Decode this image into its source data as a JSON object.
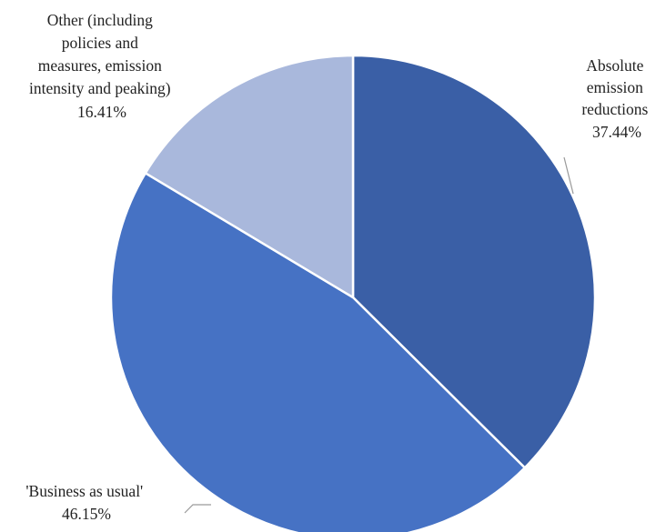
{
  "chart_data": {
    "type": "pie",
    "title": "",
    "slices": [
      {
        "label_lines": [
          "Absolute",
          "emission",
          "reductions"
        ],
        "value": 37.44,
        "value_label": "37.44%",
        "color": "#3a5fa6"
      },
      {
        "label_lines": [
          "'Business as usual'"
        ],
        "value": 46.15,
        "value_label": "46.15%",
        "color": "#4672c4"
      },
      {
        "label_lines": [
          "Other (including",
          "policies and",
          "measures, emission",
          "intensity and peaking)"
        ],
        "value": 16.41,
        "value_label": "16.41%",
        "color": "#a9b8dc"
      }
    ],
    "legend": "none",
    "start": "12 o'clock",
    "direction": "clockwise"
  }
}
